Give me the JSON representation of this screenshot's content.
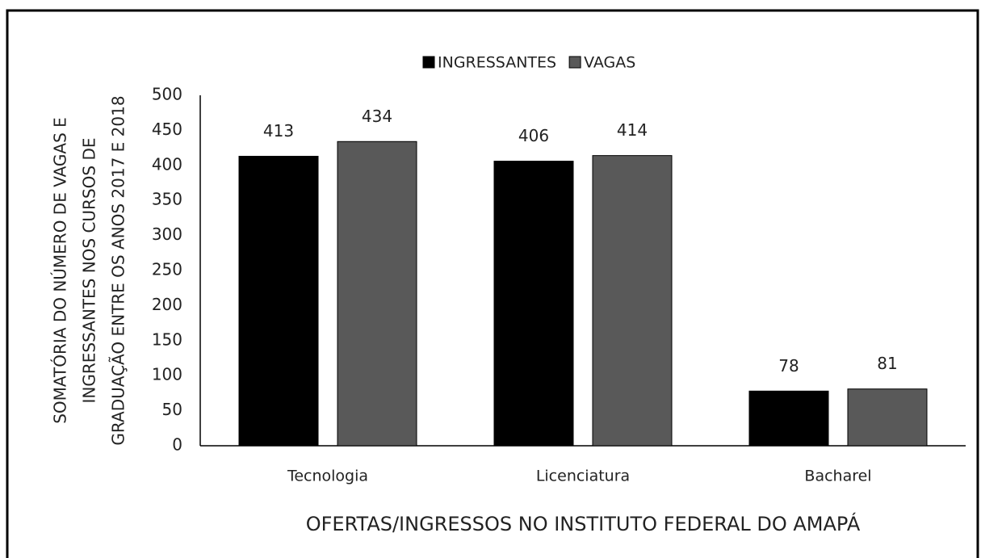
{
  "chart_data": {
    "type": "bar",
    "xlabel": "OFERTAS/INGRESSOS NO INSTITUTO FEDERAL DO AMAPÁ",
    "ylabel": [
      "SOMATÓRIA DO NÚMERO DE VAGAS E",
      "INGRESSANTES NOS CURSOS DE",
      "GRADUAÇÃO ENTRE OS ANOS 2017 E 2018"
    ],
    "categories": [
      "Tecnologia",
      "Licenciatura",
      "Bacharel"
    ],
    "series": [
      {
        "name": "INGRESSANTES",
        "color": "#000000",
        "values": [
          413,
          406,
          78
        ]
      },
      {
        "name": "VAGAS",
        "color": "#595959",
        "values": [
          434,
          414,
          81
        ]
      }
    ],
    "ylim": [
      0,
      500
    ],
    "yticks": [
      0,
      50,
      100,
      150,
      200,
      250,
      300,
      350,
      400,
      450,
      500
    ],
    "grid": false,
    "legend": "top"
  }
}
